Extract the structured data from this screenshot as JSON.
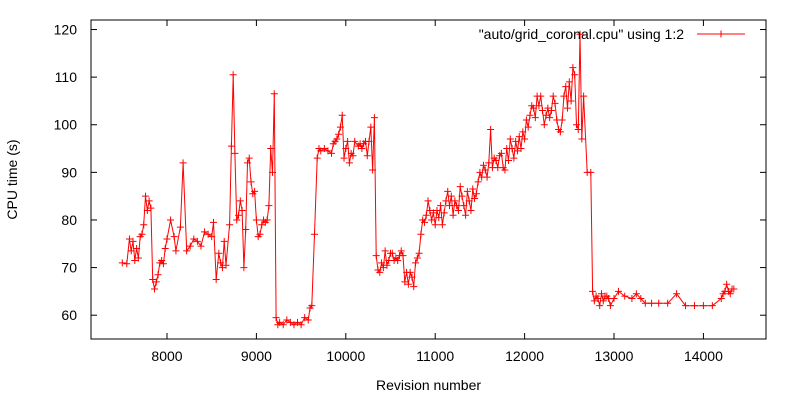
{
  "chart_data": {
    "type": "line",
    "title": "",
    "xlabel": "Revision number",
    "ylabel": "CPU time (s)",
    "xlim": [
      7150,
      14700
    ],
    "ylim": [
      55,
      122
    ],
    "xticks": [
      8000,
      9000,
      10000,
      11000,
      12000,
      13000,
      14000
    ],
    "yticks": [
      60,
      70,
      80,
      90,
      100,
      110,
      120
    ],
    "grid": false,
    "legend_position": "top-right",
    "series_color": "#ff0000",
    "marker": "plus",
    "series": [
      {
        "name": "\"auto/grid_coronal.cpu\" using 1:2",
        "points": [
          [
            7500,
            71
          ],
          [
            7550,
            70.8
          ],
          [
            7580,
            76
          ],
          [
            7600,
            73.5
          ],
          [
            7620,
            75.5
          ],
          [
            7640,
            71.5
          ],
          [
            7660,
            74
          ],
          [
            7680,
            72
          ],
          [
            7700,
            76.5
          ],
          [
            7720,
            77
          ],
          [
            7740,
            79
          ],
          [
            7760,
            85
          ],
          [
            7780,
            82
          ],
          [
            7800,
            84
          ],
          [
            7820,
            82.5
          ],
          [
            7840,
            67.5
          ],
          [
            7860,
            65.5
          ],
          [
            7880,
            67
          ],
          [
            7900,
            68.5
          ],
          [
            7920,
            71
          ],
          [
            7940,
            71.5
          ],
          [
            7960,
            70.8
          ],
          [
            7980,
            74
          ],
          [
            8000,
            76
          ],
          [
            8040,
            80
          ],
          [
            8080,
            76.5
          ],
          [
            8100,
            73.5
          ],
          [
            8150,
            78.5
          ],
          [
            8180,
            92
          ],
          [
            8220,
            73.5
          ],
          [
            8260,
            74.5
          ],
          [
            8300,
            76
          ],
          [
            8340,
            75.5
          ],
          [
            8380,
            74.5
          ],
          [
            8420,
            77.5
          ],
          [
            8460,
            77
          ],
          [
            8500,
            76.5
          ],
          [
            8520,
            79.5
          ],
          [
            8550,
            67.5
          ],
          [
            8580,
            73
          ],
          [
            8600,
            71
          ],
          [
            8620,
            70
          ],
          [
            8640,
            75.5
          ],
          [
            8660,
            70.5
          ],
          [
            8700,
            79
          ],
          [
            8720,
            95.5
          ],
          [
            8740,
            110.5
          ],
          [
            8760,
            94
          ],
          [
            8780,
            80
          ],
          [
            8800,
            81
          ],
          [
            8820,
            84
          ],
          [
            8840,
            82
          ],
          [
            8860,
            70
          ],
          [
            8880,
            78
          ],
          [
            8900,
            92
          ],
          [
            8920,
            93
          ],
          [
            8940,
            88
          ],
          [
            8960,
            85.5
          ],
          [
            8980,
            86
          ],
          [
            9000,
            80
          ],
          [
            9020,
            76.5
          ],
          [
            9040,
            77
          ],
          [
            9060,
            79
          ],
          [
            9080,
            80
          ],
          [
            9100,
            79.5
          ],
          [
            9120,
            80
          ],
          [
            9140,
            83
          ],
          [
            9160,
            95
          ],
          [
            9180,
            90
          ],
          [
            9200,
            106.5
          ],
          [
            9220,
            59.5
          ],
          [
            9240,
            58
          ],
          [
            9260,
            58.5
          ],
          [
            9300,
            58
          ],
          [
            9340,
            59
          ],
          [
            9380,
            58.5
          ],
          [
            9420,
            58
          ],
          [
            9460,
            58.5
          ],
          [
            9500,
            58
          ],
          [
            9540,
            59.5
          ],
          [
            9580,
            59
          ],
          [
            9600,
            61.5
          ],
          [
            9620,
            62
          ],
          [
            9650,
            77
          ],
          [
            9680,
            93
          ],
          [
            9700,
            95
          ],
          [
            9720,
            94.5
          ],
          [
            9760,
            95
          ],
          [
            9800,
            94.5
          ],
          [
            9840,
            94
          ],
          [
            9860,
            96
          ],
          [
            9880,
            96.5
          ],
          [
            9900,
            97
          ],
          [
            9920,
            98
          ],
          [
            9940,
            99.5
          ],
          [
            9960,
            102
          ],
          [
            9980,
            93
          ],
          [
            10000,
            95
          ],
          [
            10020,
            96.5
          ],
          [
            10040,
            92
          ],
          [
            10060,
            94
          ],
          [
            10080,
            93.5
          ],
          [
            10100,
            96.5
          ],
          [
            10140,
            95.5
          ],
          [
            10160,
            96
          ],
          [
            10180,
            95
          ],
          [
            10200,
            96
          ],
          [
            10220,
            96.5
          ],
          [
            10240,
            93.5
          ],
          [
            10260,
            96.5
          ],
          [
            10280,
            99.5
          ],
          [
            10300,
            90.5
          ],
          [
            10320,
            101.5
          ],
          [
            10340,
            72.5
          ],
          [
            10360,
            69.5
          ],
          [
            10380,
            69
          ],
          [
            10400,
            71
          ],
          [
            10420,
            70
          ],
          [
            10440,
            73.5
          ],
          [
            10460,
            70.5
          ],
          [
            10480,
            71.5
          ],
          [
            10500,
            73
          ],
          [
            10520,
            73
          ],
          [
            10540,
            71.5
          ],
          [
            10560,
            72
          ],
          [
            10580,
            71.5
          ],
          [
            10600,
            72.5
          ],
          [
            10620,
            73.5
          ],
          [
            10640,
            72.5
          ],
          [
            10660,
            67
          ],
          [
            10680,
            69
          ],
          [
            10700,
            66.5
          ],
          [
            10720,
            69
          ],
          [
            10740,
            68
          ],
          [
            10760,
            66
          ],
          [
            10780,
            71
          ],
          [
            10800,
            72
          ],
          [
            10820,
            73
          ],
          [
            10840,
            77
          ],
          [
            10860,
            80
          ],
          [
            10880,
            79.5
          ],
          [
            10900,
            81
          ],
          [
            10920,
            84
          ],
          [
            10940,
            82
          ],
          [
            10960,
            80
          ],
          [
            10980,
            81.5
          ],
          [
            11000,
            79
          ],
          [
            11020,
            82
          ],
          [
            11040,
            80.5
          ],
          [
            11060,
            83
          ],
          [
            11080,
            79
          ],
          [
            11100,
            81.5
          ],
          [
            11120,
            84
          ],
          [
            11140,
            86
          ],
          [
            11160,
            83
          ],
          [
            11180,
            85
          ],
          [
            11200,
            81
          ],
          [
            11220,
            84
          ],
          [
            11240,
            83
          ],
          [
            11260,
            82
          ],
          [
            11280,
            87
          ],
          [
            11300,
            85
          ],
          [
            11320,
            83
          ],
          [
            11340,
            81
          ],
          [
            11360,
            86
          ],
          [
            11380,
            84
          ],
          [
            11400,
            82
          ],
          [
            11420,
            86.5
          ],
          [
            11440,
            84.5
          ],
          [
            11460,
            85.5
          ],
          [
            11480,
            88
          ],
          [
            11500,
            90
          ],
          [
            11520,
            89
          ],
          [
            11540,
            91.5
          ],
          [
            11560,
            90.5
          ],
          [
            11580,
            89
          ],
          [
            11600,
            92
          ],
          [
            11620,
            99
          ],
          [
            11640,
            91
          ],
          [
            11660,
            93
          ],
          [
            11680,
            92.5
          ],
          [
            11700,
            91
          ],
          [
            11720,
            93.5
          ],
          [
            11740,
            94
          ],
          [
            11760,
            91
          ],
          [
            11780,
            90.5
          ],
          [
            11800,
            95
          ],
          [
            11820,
            92.5
          ],
          [
            11840,
            97
          ],
          [
            11860,
            95
          ],
          [
            11880,
            93
          ],
          [
            11900,
            96.5
          ],
          [
            11920,
            94.5
          ],
          [
            11940,
            97.5
          ],
          [
            11960,
            95
          ],
          [
            11980,
            98.5
          ],
          [
            12000,
            97
          ],
          [
            12020,
            101
          ],
          [
            12040,
            99.5
          ],
          [
            12060,
            102
          ],
          [
            12080,
            104
          ],
          [
            12100,
            103.5
          ],
          [
            12120,
            101.5
          ],
          [
            12140,
            106
          ],
          [
            12160,
            104
          ],
          [
            12180,
            106
          ],
          [
            12200,
            103
          ],
          [
            12220,
            100
          ],
          [
            12240,
            102
          ],
          [
            12260,
            103.5
          ],
          [
            12280,
            101.5
          ],
          [
            12300,
            103
          ],
          [
            12320,
            106
          ],
          [
            12340,
            104.5
          ],
          [
            12360,
            101
          ],
          [
            12380,
            99
          ],
          [
            12400,
            98.5
          ],
          [
            12420,
            101
          ],
          [
            12440,
            106
          ],
          [
            12460,
            108
          ],
          [
            12480,
            103.5
          ],
          [
            12500,
            109
          ],
          [
            12520,
            105
          ],
          [
            12540,
            112
          ],
          [
            12560,
            110.5
          ],
          [
            12580,
            100
          ],
          [
            12600,
            99
          ],
          [
            12620,
            119
          ],
          [
            12640,
            97
          ],
          [
            12660,
            106
          ],
          [
            12700,
            90
          ],
          [
            12740,
            90
          ],
          [
            12760,
            65
          ],
          [
            12780,
            63
          ],
          [
            12800,
            64
          ],
          [
            12820,
            63.5
          ],
          [
            12840,
            62
          ],
          [
            12860,
            64.5
          ],
          [
            12880,
            63
          ],
          [
            12900,
            64
          ],
          [
            12920,
            64
          ],
          [
            12940,
            63.5
          ],
          [
            12960,
            62
          ],
          [
            13000,
            63.5
          ],
          [
            13050,
            65
          ],
          [
            13120,
            64
          ],
          [
            13200,
            63.5
          ],
          [
            13250,
            64.5
          ],
          [
            13300,
            63.5
          ],
          [
            13350,
            62.5
          ],
          [
            13420,
            62.5
          ],
          [
            13500,
            62.5
          ],
          [
            13600,
            62.5
          ],
          [
            13700,
            64.5
          ],
          [
            13800,
            62
          ],
          [
            13900,
            62
          ],
          [
            14000,
            62
          ],
          [
            14100,
            62
          ],
          [
            14200,
            63.5
          ],
          [
            14220,
            64.5
          ],
          [
            14240,
            65
          ],
          [
            14260,
            66.5
          ],
          [
            14280,
            65
          ],
          [
            14300,
            64.5
          ],
          [
            14320,
            65.5
          ],
          [
            14340,
            65.5
          ]
        ]
      }
    ]
  }
}
